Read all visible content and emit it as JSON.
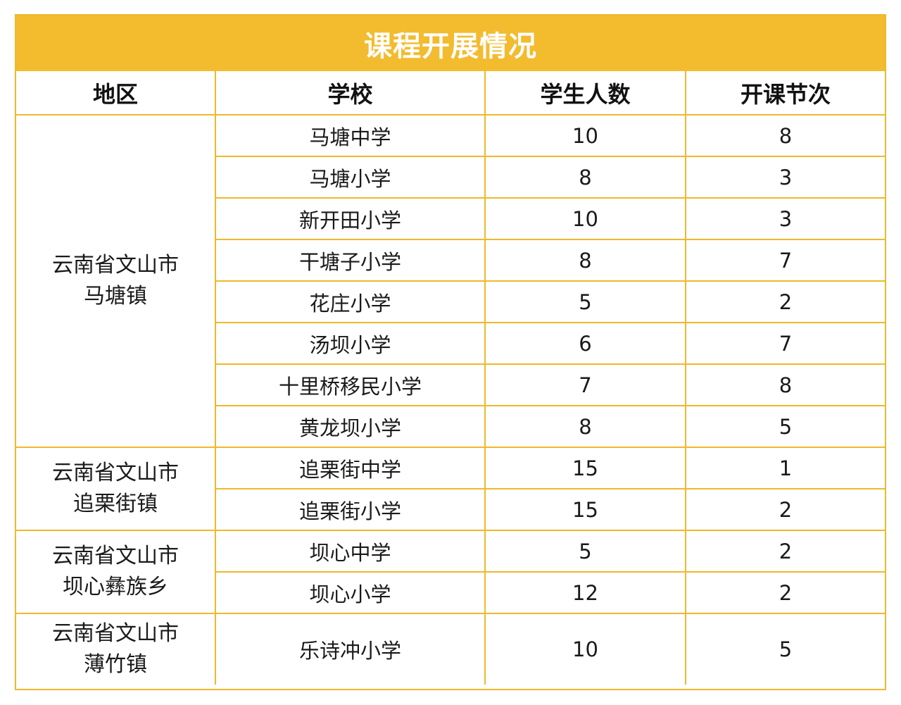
{
  "title": "课程开展情况",
  "colors": {
    "accent": "#f3bb2e",
    "border": "#f0b82c",
    "title_text": "#ffffff"
  },
  "headers": [
    "地区",
    "学校",
    "学生人数",
    "开课节次"
  ],
  "groups": [
    {
      "region_lines": [
        "云南省文山市",
        "马塘镇"
      ],
      "rows": [
        {
          "school": "马塘中学",
          "students": "10",
          "sessions": "8"
        },
        {
          "school": "马塘小学",
          "students": "8",
          "sessions": "3"
        },
        {
          "school": "新开田小学",
          "students": "10",
          "sessions": "3"
        },
        {
          "school": "干塘子小学",
          "students": "8",
          "sessions": "7"
        },
        {
          "school": "花庄小学",
          "students": "5",
          "sessions": "2"
        },
        {
          "school": "汤坝小学",
          "students": "6",
          "sessions": "7"
        },
        {
          "school": "十里桥移民小学",
          "students": "7",
          "sessions": "8"
        },
        {
          "school": "黄龙坝小学",
          "students": "8",
          "sessions": "5"
        }
      ]
    },
    {
      "region_lines": [
        "云南省文山市",
        "追栗街镇"
      ],
      "rows": [
        {
          "school": "追栗街中学",
          "students": "15",
          "sessions": "1"
        },
        {
          "school": "追栗街小学",
          "students": "15",
          "sessions": "2"
        }
      ]
    },
    {
      "region_lines": [
        "云南省文山市",
        "坝心彝族乡"
      ],
      "rows": [
        {
          "school": "坝心中学",
          "students": "5",
          "sessions": "2"
        },
        {
          "school": "坝心小学",
          "students": "12",
          "sessions": "2"
        }
      ]
    },
    {
      "region_lines": [
        "云南省文山市",
        "薄竹镇"
      ],
      "rows": [
        {
          "school": "乐诗冲小学",
          "students": "10",
          "sessions": "5"
        }
      ]
    }
  ]
}
